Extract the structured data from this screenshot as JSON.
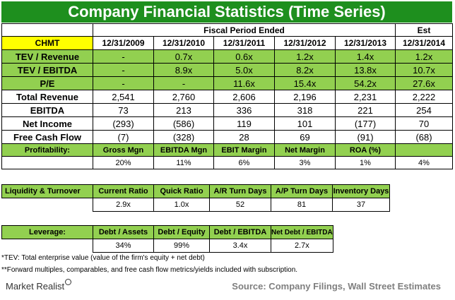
{
  "title": "Company Financial Statistics (Time Series)",
  "header": {
    "period_group": "Fiscal Period Ended",
    "est": "Est",
    "ticker": "CHMT",
    "dates": [
      "12/31/2009",
      "12/31/2010",
      "12/31/2011",
      "12/31/2012",
      "12/31/2013",
      "12/31/2014"
    ]
  },
  "rows": [
    {
      "label": "TEV / Revenue",
      "values": [
        "-",
        "0.7x",
        "0.6x",
        "1.2x",
        "1.4x",
        "1.2x"
      ]
    },
    {
      "label": "TEV / EBITDA",
      "values": [
        "-",
        "8.9x",
        "5.0x",
        "8.2x",
        "13.8x",
        "10.7x"
      ]
    },
    {
      "label": "P/E",
      "values": [
        "-",
        "-",
        "11.6x",
        "15.4x",
        "54.2x",
        "27.6x"
      ]
    },
    {
      "label": "Total Revenue",
      "values": [
        "2,541",
        "2,760",
        "2,606",
        "2,196",
        "2,231",
        "2,222"
      ]
    },
    {
      "label": "EBITDA",
      "values": [
        "73",
        "213",
        "336",
        "318",
        "221",
        "254"
      ]
    },
    {
      "label": "Net Income",
      "values": [
        "(293)",
        "(586)",
        "119",
        "101",
        "(177)",
        "70"
      ]
    },
    {
      "label": "Free Cash Flow",
      "values": [
        "(7)",
        "(328)",
        "28",
        "69",
        "(91)",
        "(68)"
      ]
    }
  ],
  "profitability": {
    "label": "Profitability:",
    "headers": [
      "Gross Mgn",
      "EBITDA Mgn",
      "EBIT Margin",
      "Net Margin",
      "ROA (%)",
      ""
    ],
    "values": [
      "20%",
      "11%",
      "6%",
      "3%",
      "1%",
      "4%"
    ]
  },
  "liquidity": {
    "label": "Liquidity & Turnover",
    "headers": [
      "Current Ratio",
      "Quick Ratio",
      "A/R Turn Days",
      "A/P Turn Days",
      "Inventory Days"
    ],
    "values": [
      "2.9x",
      "1.0x",
      "52",
      "81",
      "37"
    ]
  },
  "leverage": {
    "label": "Leverage:",
    "headers": [
      "Debt / Assets",
      "Debt / Equity",
      "Debt / EBITDA",
      "Net Debt / EBITDA"
    ],
    "values": [
      "34%",
      "99%",
      "3.4x",
      "2.7x"
    ]
  },
  "notes": [
    "*TEV: Total enterprise value (value of the firm's equity + net debt)",
    "**Forward multiples, comparables, and free cash flow metrics/yields included with subscription."
  ],
  "brand": "Market Realist",
  "source": "Source: Company Filings, Wall Street Estimates",
  "colors": {
    "title_bg": "#1e8f1e",
    "green": "#92d050",
    "ticker": "#ffff00"
  }
}
